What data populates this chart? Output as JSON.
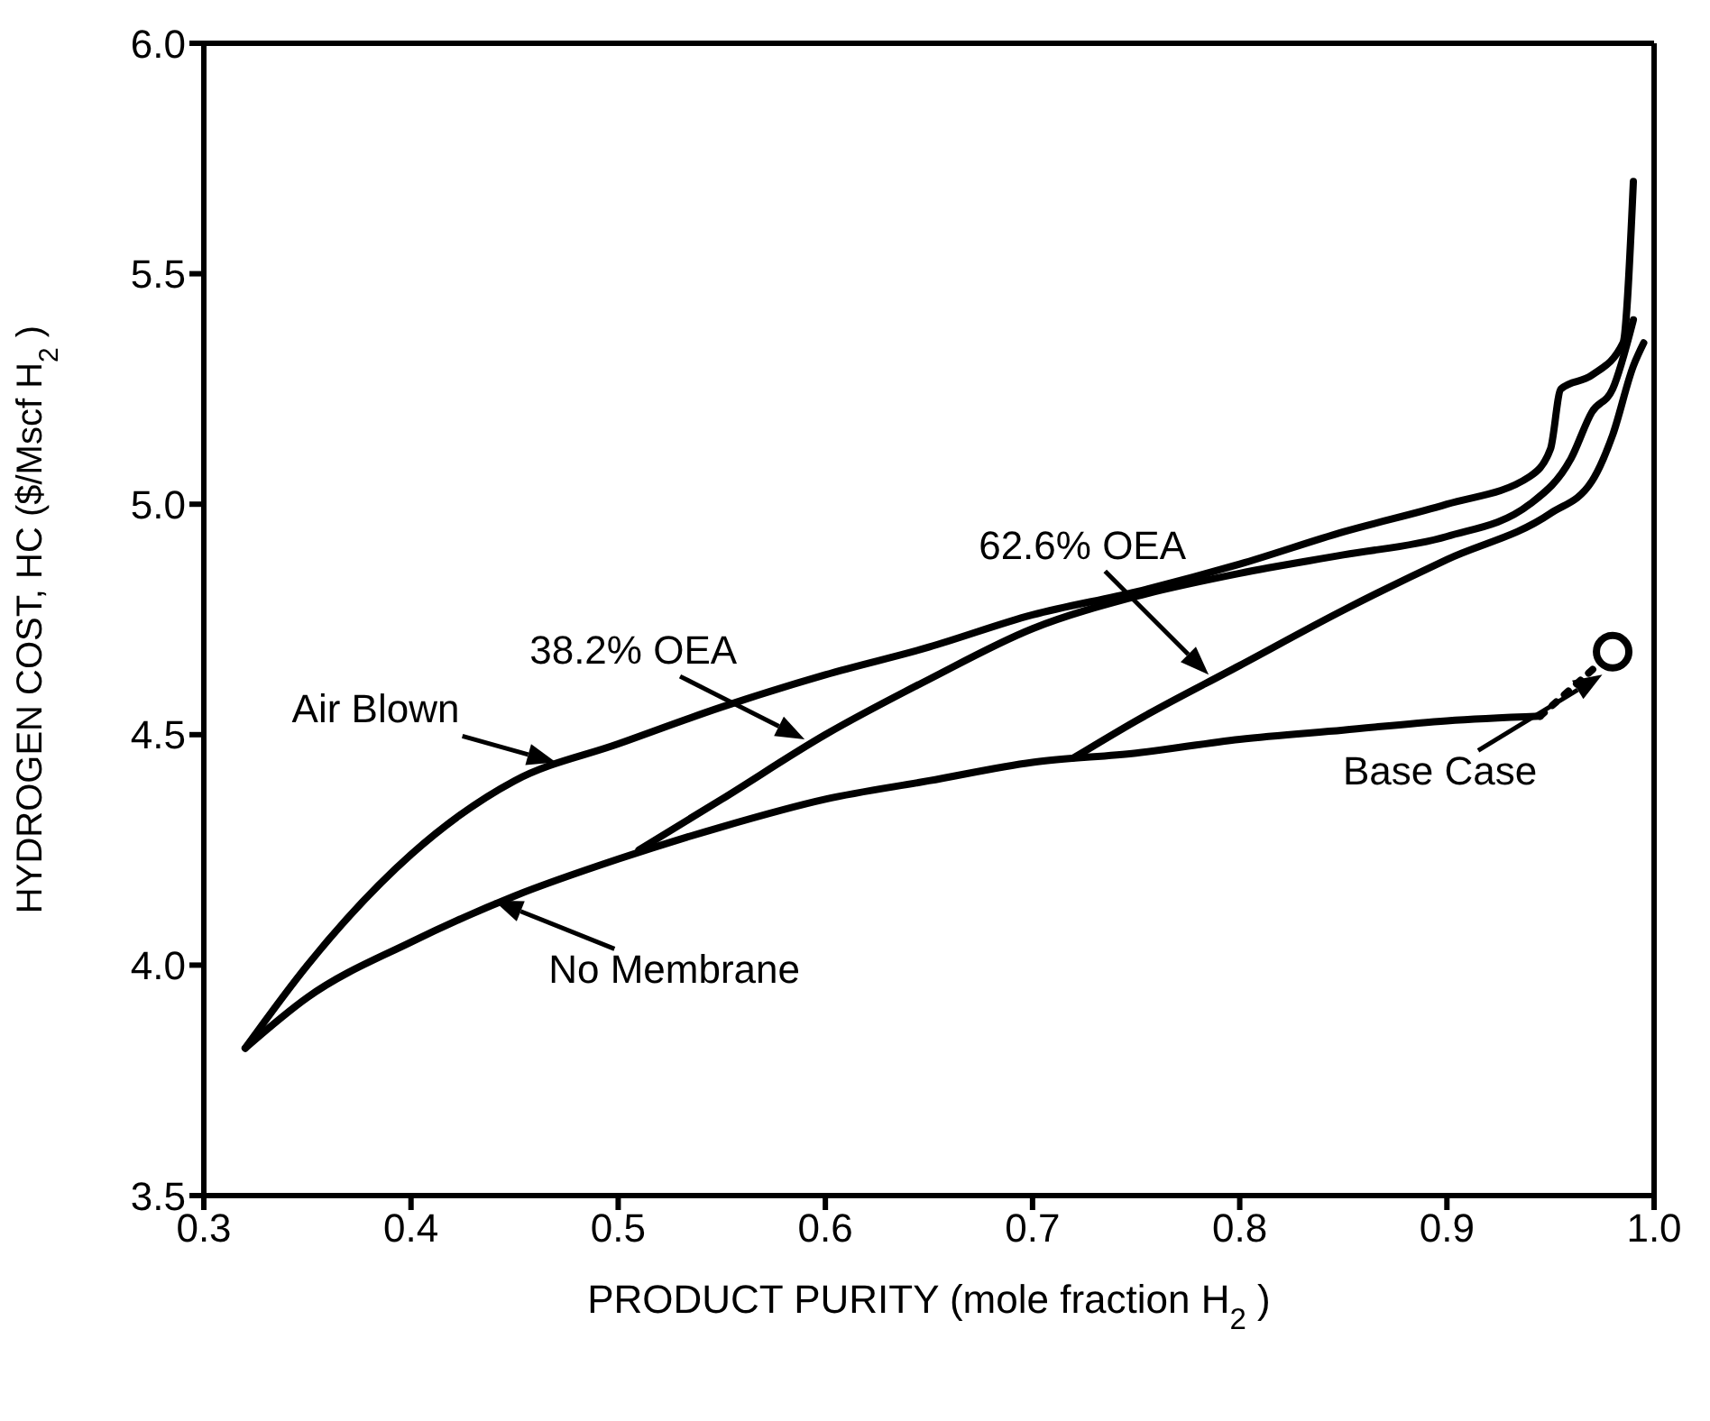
{
  "chart_data": {
    "type": "line",
    "xlabel": "PRODUCT  PURITY (mole fraction H$_{2}$ )",
    "ylabel": "HYDROGEN COST, HC ($/Mscf H$_{2}$ )",
    "xlim": [
      0.3,
      1.0
    ],
    "xticks": [
      0.3,
      0.4,
      0.5,
      0.6,
      0.7,
      0.8,
      0.9,
      {
        "value": 1.0,
        "label": "1.0"
      }
    ],
    "ylim": [
      3.5,
      6.0
    ],
    "yticks": [
      3.5,
      {
        "value": 4.0,
        "label": "4.0"
      },
      4.5,
      {
        "value": 5.0,
        "label": "5.0"
      },
      5.5,
      {
        "value": 6.0,
        "label": "6.0"
      }
    ],
    "grid": false,
    "legend": false,
    "marker": "none",
    "line_style": "solid",
    "series": [
      {
        "color": "#000000",
        "x": [
          0.32,
          0.35,
          0.4,
          0.45,
          0.5,
          0.55,
          0.6,
          0.65,
          0.7,
          0.75,
          0.8,
          0.85,
          0.9,
          0.94,
          0.95,
          0.955,
          0.97,
          0.985,
          0.99
        ],
        "values": [
          3.82,
          4.0,
          4.24,
          4.4,
          4.48,
          4.56,
          4.63,
          4.69,
          4.76,
          4.81,
          4.87,
          4.94,
          5.0,
          5.06,
          5.12,
          5.25,
          5.28,
          5.35,
          5.7
        ]
      },
      {
        "color": "#000000",
        "x": [
          0.51,
          0.55,
          0.6,
          0.65,
          0.7,
          0.75,
          0.8,
          0.85,
          0.9,
          0.94,
          0.96,
          0.97,
          0.98,
          0.99
        ],
        "values": [
          4.25,
          4.36,
          4.5,
          4.62,
          4.73,
          4.8,
          4.85,
          4.89,
          4.93,
          5.0,
          5.1,
          5.2,
          5.25,
          5.4
        ]
      },
      {
        "color": "#000000",
        "x": [
          0.72,
          0.75,
          0.8,
          0.85,
          0.9,
          0.95,
          0.97,
          0.98,
          0.99,
          0.995
        ],
        "values": [
          4.45,
          4.53,
          4.65,
          4.77,
          4.88,
          4.98,
          5.05,
          5.15,
          5.3,
          5.35
        ]
      },
      {
        "color": "#000000",
        "x": [
          0.32,
          0.35,
          0.4,
          0.45,
          0.5,
          0.55,
          0.6,
          0.65,
          0.7,
          0.75,
          0.8,
          0.85,
          0.9,
          0.945
        ],
        "values": [
          3.82,
          3.93,
          4.05,
          4.15,
          4.23,
          4.3,
          4.36,
          4.4,
          4.44,
          4.46,
          4.49,
          4.51,
          4.53,
          4.54
        ]
      },
      {
        "color": "#000000",
        "line_style": "dotted",
        "x": [
          0.945,
          0.98
        ],
        "values": [
          4.54,
          4.68
        ]
      },
      {
        "type": "scatter",
        "marker": "circle",
        "color": "#000000",
        "x": [
          0.98
        ],
        "values": [
          4.68
        ]
      }
    ],
    "annotations": [
      {
        "text": "Air Blown",
        "x": 0.47,
        "y": 4.44
      },
      {
        "text": "38.2% OEA",
        "x": 0.59,
        "y": 4.49
      },
      {
        "text": "62.6% OEA",
        "x": 0.785,
        "y": 4.63
      },
      {
        "text": "No Membrane",
        "x": 0.44,
        "y": 4.14
      },
      {
        "text": "Base Case",
        "x": 0.975,
        "y": 4.63
      }
    ]
  }
}
